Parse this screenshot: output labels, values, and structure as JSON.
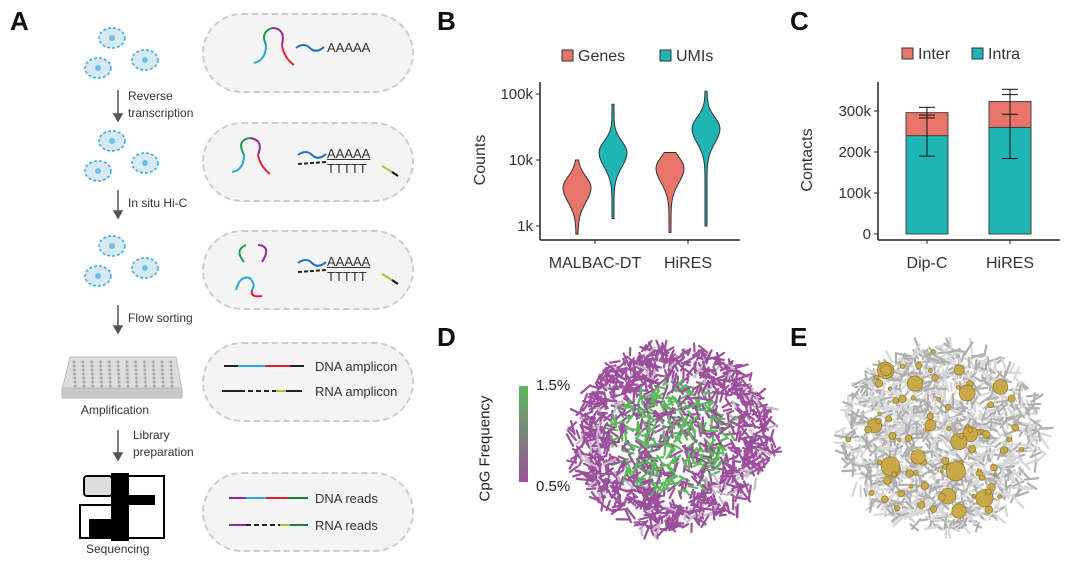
{
  "panel_a": {
    "label": "A",
    "steps": [
      {
        "line1": "Reverse",
        "line2": "transcription"
      },
      {
        "line1": "In situ Hi-C",
        "line2": ""
      },
      {
        "line1": "Flow sorting",
        "line2": ""
      },
      {
        "line1": "Library",
        "line2": "preparation"
      }
    ],
    "amplification_label": "Amplification",
    "sequencing_label": "Sequencing",
    "poly_a": "AAAAA",
    "poly_t": "TTTTT",
    "dna_amplicon": "DNA amplicon",
    "rna_amplicon": "RNA amplicon",
    "dna_reads": "DNA reads",
    "rna_reads": "RNA reads"
  },
  "panel_b_label": "B",
  "panel_c_label": "C",
  "panel_d": {
    "label": "D",
    "colorbar_title": "CpG Frequency",
    "colorbar_max": "1.5%",
    "colorbar_min": "0.5%",
    "color_high": "#5cb85c",
    "color_low": "#9c4f9c"
  },
  "panel_e": {
    "label": "E"
  },
  "colors": {
    "genes": "#e8756a",
    "umis": "#1fb5b5",
    "inter": "#e8756a",
    "intra": "#1fb5b5"
  },
  "chart_data": [
    {
      "type": "violin",
      "ylabel": "Counts",
      "yscale": "log",
      "ylim": [
        700,
        120000
      ],
      "yticks": [
        {
          "value": 1000,
          "label": "1k"
        },
        {
          "value": 10000,
          "label": "10k"
        },
        {
          "value": 100000,
          "label": "100k"
        }
      ],
      "categories": [
        "MALBAC-DT",
        "HiRES"
      ],
      "legend": [
        "Genes",
        "UMIs"
      ],
      "legend_position": "top",
      "series": [
        {
          "name": "Genes",
          "violins": [
            {
              "min": 750,
              "max": 10000,
              "mode": 3800
            },
            {
              "min": 800,
              "max": 13000,
              "mode": 7500
            }
          ]
        },
        {
          "name": "UMIs",
          "violins": [
            {
              "min": 1300,
              "max": 70000,
              "mode": 13000
            },
            {
              "min": 1000,
              "max": 110000,
              "mode": 30000
            }
          ]
        }
      ]
    },
    {
      "type": "bar",
      "stacked": true,
      "ylabel": "Contacts",
      "ylim": [
        0,
        370000
      ],
      "yticks": [
        {
          "value": 0,
          "label": "0"
        },
        {
          "value": 100000,
          "label": "100k"
        },
        {
          "value": 200000,
          "label": "200k"
        },
        {
          "value": 300000,
          "label": "300k"
        }
      ],
      "categories": [
        "Dip-C",
        "HiRES"
      ],
      "legend": [
        "Inter",
        "Intra"
      ],
      "legend_position": "top",
      "series": [
        {
          "name": "Intra",
          "values": [
            240000,
            260000
          ],
          "error_low": [
            190000,
            184000
          ],
          "error_high": [
            290000,
            340000
          ]
        },
        {
          "name": "Inter",
          "values": [
            56000,
            63000
          ],
          "error_low": [
            283000,
            292000
          ],
          "error_high": [
            309000,
            353000
          ]
        }
      ]
    }
  ]
}
